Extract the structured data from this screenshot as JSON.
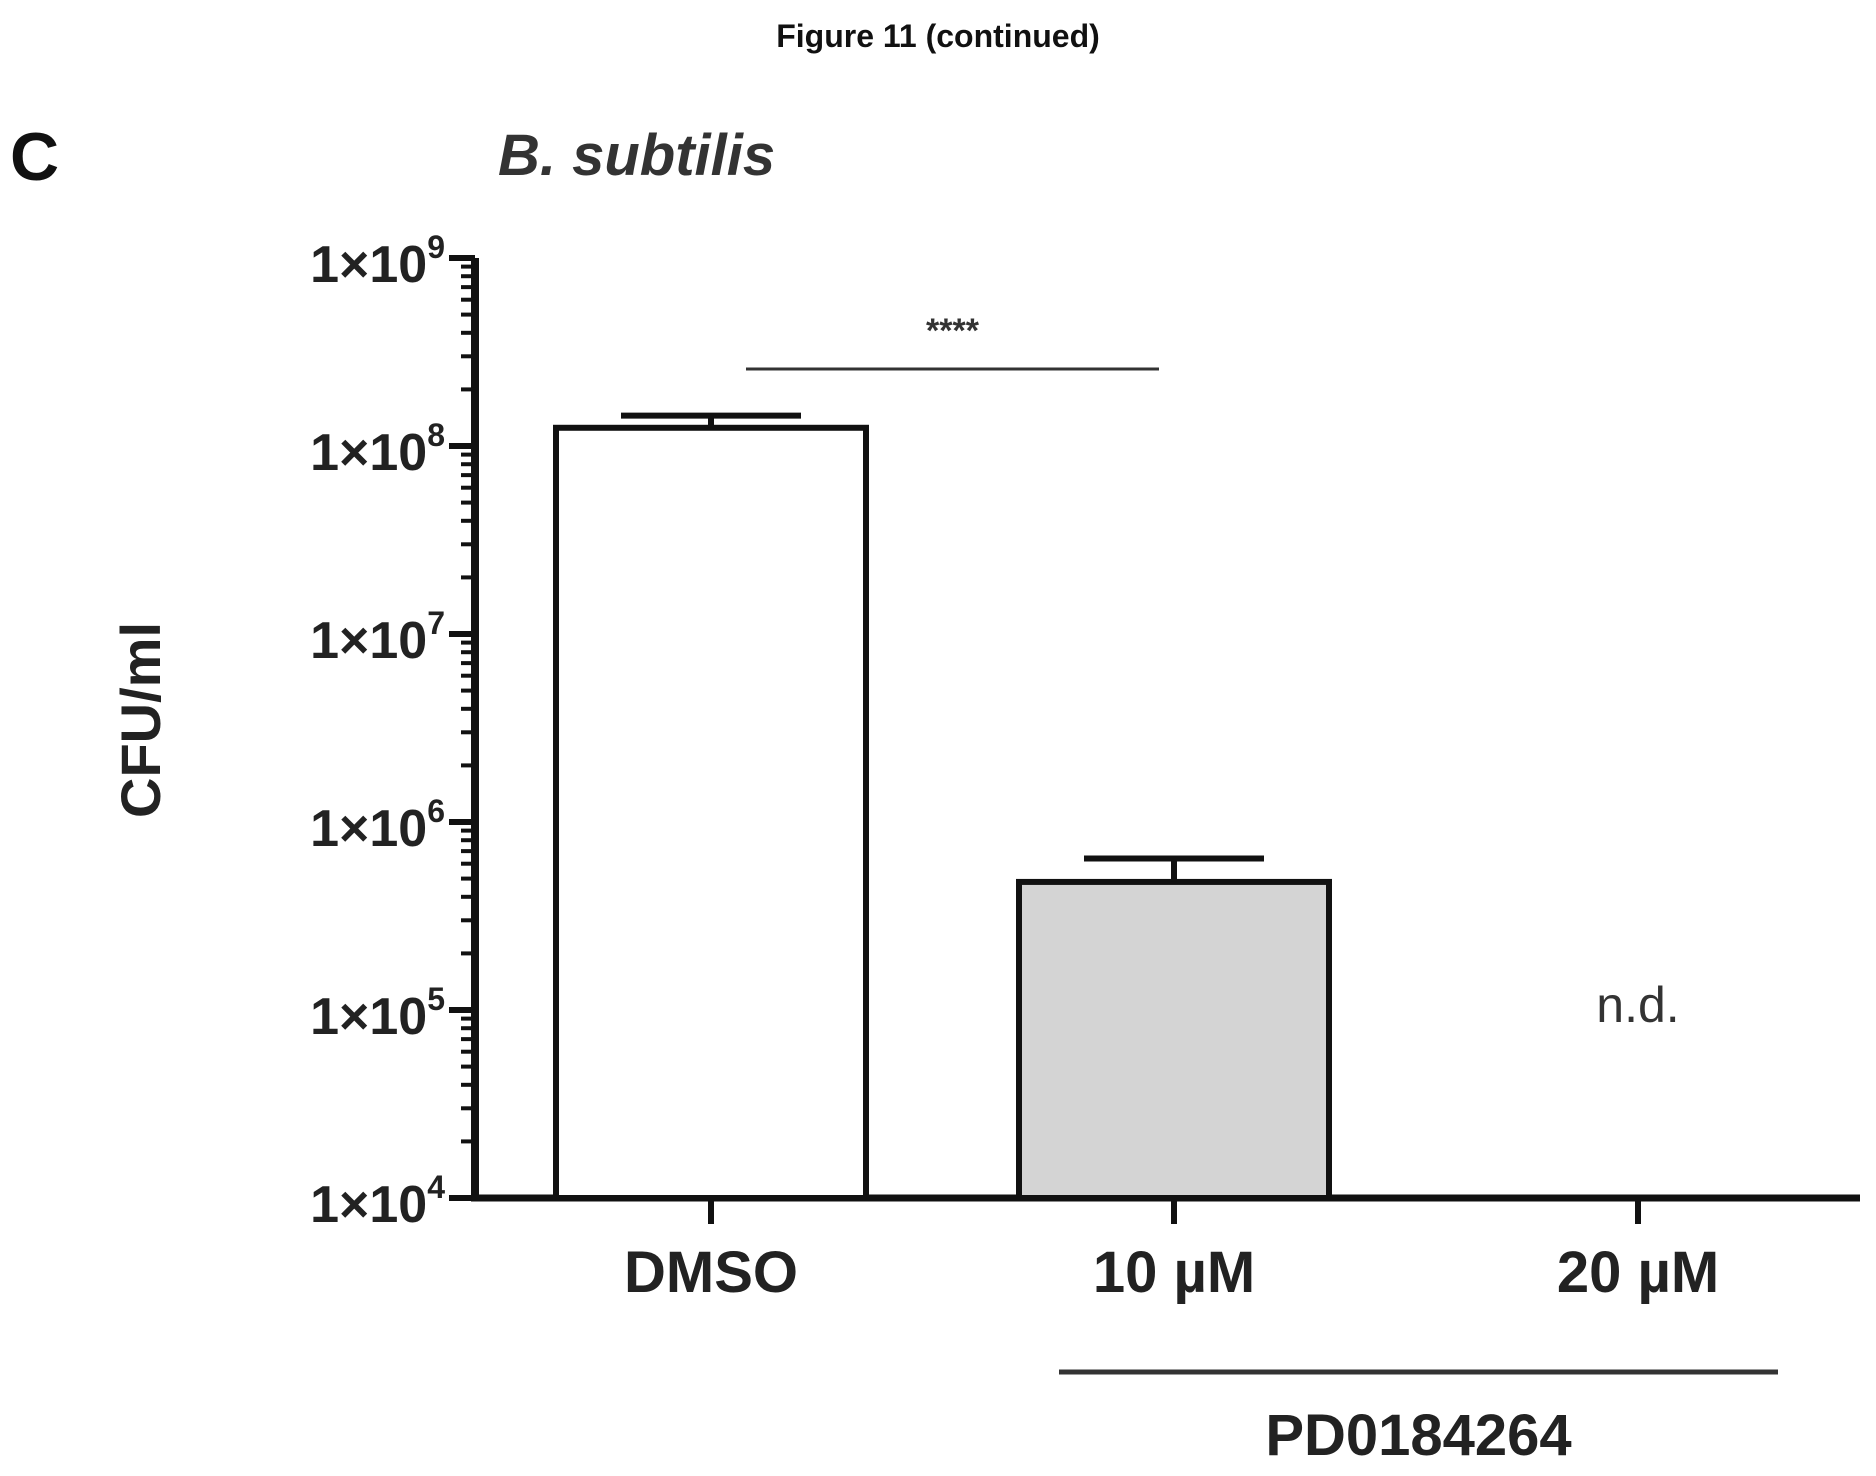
{
  "figure_caption": "Figure 11 (continued)",
  "panel_label": "C",
  "colors": {
    "axis": "#111111",
    "bar_control": "#ffffff",
    "bar_treated": "#d4d4d4",
    "bar_outline": "#111111"
  },
  "chart_data": {
    "type": "bar",
    "title": "B. subtilis",
    "ylabel": "CFU/ml",
    "yscale": "log",
    "ylim": [
      10000,
      1000000000
    ],
    "yticks": [
      {
        "value": 10000,
        "base": "1×10",
        "exp": "4"
      },
      {
        "value": 100000,
        "base": "1×10",
        "exp": "5"
      },
      {
        "value": 1000000,
        "base": "1×10",
        "exp": "6"
      },
      {
        "value": 10000000,
        "base": "1×10",
        "exp": "7"
      },
      {
        "value": 100000000,
        "base": "1×10",
        "exp": "8"
      },
      {
        "value": 1000000000,
        "base": "1×10",
        "exp": "9"
      }
    ],
    "categories": [
      "DMSO",
      "10 µM",
      "20 µM"
    ],
    "values": [
      125000000,
      480000,
      null
    ],
    "errors": [
      20000000,
      160000,
      null
    ],
    "bar_fills": [
      "#ffffff",
      "#d4d4d4",
      null
    ],
    "annotations": [
      {
        "category_index": 2,
        "text": "n.d."
      }
    ],
    "significance": {
      "from": 0,
      "to": 1,
      "text": "****"
    },
    "group_label": {
      "text": "PD0184264",
      "from": 1,
      "to": 2
    },
    "grid": false,
    "legend": "none"
  }
}
